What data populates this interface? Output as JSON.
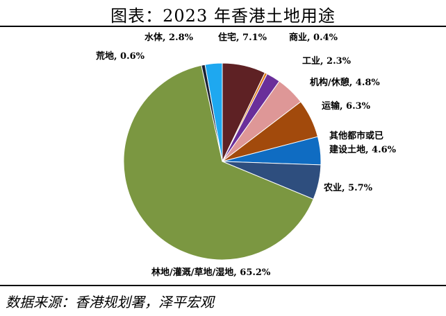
{
  "title": "图表：2023 年香港土地用途",
  "source": "数据来源：香港规划署，泽平宏观",
  "chart_data": {
    "type": "pie",
    "title": "图表：2023 年香港土地用途",
    "start_clockwise_from_top": true,
    "slices": [
      {
        "label": "住宅",
        "value": 7.1,
        "display": "住宅, 7.1%",
        "color": "#5e2124"
      },
      {
        "label": "商业",
        "value": 0.4,
        "display": "商业, 0.4%",
        "color": "#e07c1a"
      },
      {
        "label": "工业",
        "value": 2.3,
        "display": "工业, 2.3%",
        "color": "#6a2f9a"
      },
      {
        "label": "机构/休憩",
        "value": 4.8,
        "display": "机构/休憩, 4.8%",
        "color": "#de9797"
      },
      {
        "label": "运输",
        "value": 6.3,
        "display": "运输, 6.3%",
        "color": "#a24a0c"
      },
      {
        "label": "其他都市或已建设土地",
        "value": 4.6,
        "display": "其他都市或已建设土地, 4.6%",
        "display_lines": [
          "其他都市或已",
          "建设土地, 4.6%"
        ],
        "color": "#0f6cc2"
      },
      {
        "label": "农业",
        "value": 5.7,
        "display": "农业, 5.7%",
        "color": "#2e4e7e"
      },
      {
        "label": "林地/灌溉/草地/湿地",
        "value": 65.2,
        "display": "林地/灌溉/草地/湿地, 65.2%",
        "color": "#7b9741"
      },
      {
        "label": "荒地",
        "value": 0.6,
        "display": "荒地, 0.6%",
        "color": "#1b2234"
      },
      {
        "label": "水体",
        "value": 2.8,
        "display": "水体, 2.8%",
        "color": "#1ea8f0"
      }
    ]
  }
}
